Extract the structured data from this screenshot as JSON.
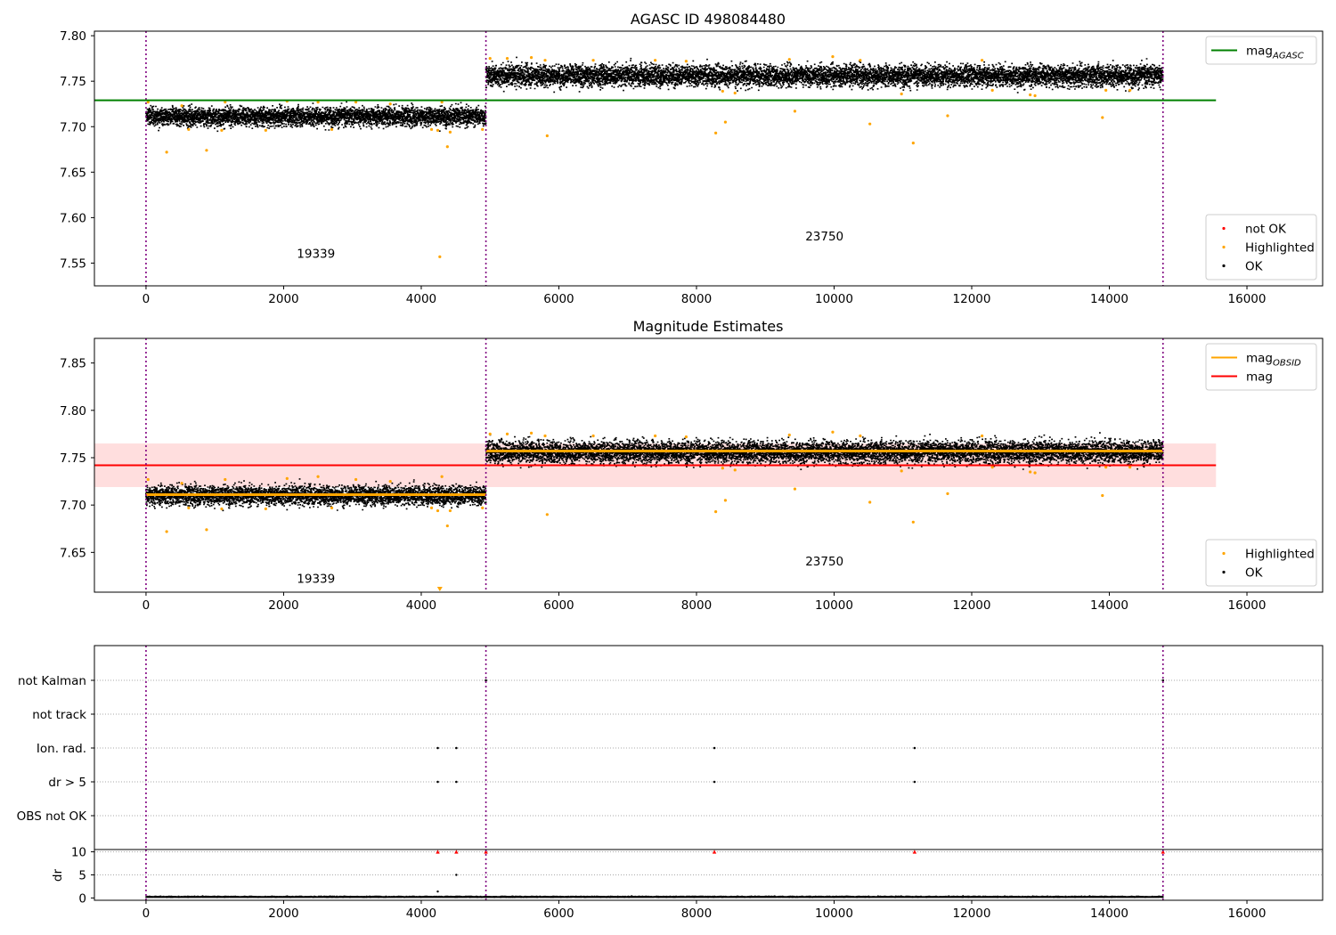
{
  "chart_data": [
    {
      "type": "scatter",
      "title": "AGASC ID 498084480",
      "xlabel": "",
      "ylabel": "",
      "xlim": [
        -750,
        17100
      ],
      "ylim": [
        7.525,
        7.805
      ],
      "x_ticks": [
        0,
        2000,
        4000,
        6000,
        8000,
        10000,
        12000,
        14000,
        16000
      ],
      "x_tick_labels": [
        "0",
        "2000",
        "4000",
        "6000",
        "8000",
        "10000",
        "12000",
        "14000",
        "16000"
      ],
      "y_ticks": [
        7.55,
        7.6,
        7.65,
        7.7,
        7.75,
        7.8
      ],
      "y_tick_labels": [
        "7.55",
        "7.60",
        "7.65",
        "7.70",
        "7.75",
        "7.80"
      ],
      "obs_boundaries": [
        0,
        4940,
        14780
      ],
      "annotations": [
        {
          "text": "19339",
          "x": 2470,
          "y": 7.556
        },
        {
          "text": "23750",
          "x": 9860,
          "y": 7.575
        }
      ],
      "horizontal_lines": [
        {
          "name": "mag_AGASC",
          "value": 7.729,
          "x_range": [
            -750,
            15550
          ],
          "color": "#008000"
        }
      ],
      "series": [
        {
          "name": "OK",
          "color": "#000000",
          "segments": [
            {
              "x_range": [
                0,
                4940
              ],
              "mean": 7.712,
              "spread": 0.013
            },
            {
              "x_range": [
                4940,
                14780
              ],
              "mean": 7.757,
              "spread": 0.015
            }
          ]
        },
        {
          "name": "Highlighted",
          "color": "#ffa500",
          "points": [
            [
              30,
              7.727
            ],
            [
              300,
              7.672
            ],
            [
              520,
              7.723
            ],
            [
              620,
              7.697
            ],
            [
              880,
              7.674
            ],
            [
              1100,
              7.696
            ],
            [
              1150,
              7.727
            ],
            [
              1740,
              7.696
            ],
            [
              2050,
              7.728
            ],
            [
              2500,
              7.727
            ],
            [
              2700,
              7.697
            ],
            [
              3050,
              7.727
            ],
            [
              3550,
              7.725
            ],
            [
              4150,
              7.697
            ],
            [
              4240,
              7.696
            ],
            [
              4270,
              7.557
            ],
            [
              4300,
              7.727
            ],
            [
              4380,
              7.678
            ],
            [
              4420,
              7.694
            ],
            [
              4890,
              7.697
            ],
            [
              5000,
              7.775
            ],
            [
              5250,
              7.775
            ],
            [
              5600,
              7.776
            ],
            [
              5800,
              7.773
            ],
            [
              5830,
              7.69
            ],
            [
              6500,
              7.773
            ],
            [
              7400,
              7.773
            ],
            [
              7850,
              7.772
            ],
            [
              8280,
              7.693
            ],
            [
              8380,
              7.739
            ],
            [
              8420,
              7.705
            ],
            [
              8560,
              7.737
            ],
            [
              9350,
              7.774
            ],
            [
              9430,
              7.717
            ],
            [
              9980,
              7.777
            ],
            [
              10380,
              7.773
            ],
            [
              10520,
              7.703
            ],
            [
              10980,
              7.736
            ],
            [
              11150,
              7.682
            ],
            [
              11650,
              7.712
            ],
            [
              12150,
              7.773
            ],
            [
              12300,
              7.74
            ],
            [
              12850,
              7.735
            ],
            [
              12920,
              7.734
            ],
            [
              13900,
              7.71
            ],
            [
              13950,
              7.74
            ],
            [
              14300,
              7.74
            ]
          ]
        },
        {
          "name": "not OK",
          "color": "#ff0000",
          "points": []
        }
      ],
      "legends": [
        {
          "placement": "top-right",
          "entries": [
            {
              "label": "mag",
              "subscript": "AGASC",
              "color": "#008000",
              "kind": "line"
            }
          ]
        },
        {
          "placement": "bottom-right",
          "entries": [
            {
              "label": "not OK",
              "color": "#ff0000",
              "kind": "marker"
            },
            {
              "label": "Highlighted",
              "color": "#ffa500",
              "kind": "marker"
            },
            {
              "label": "OK",
              "color": "#000000",
              "kind": "marker"
            }
          ]
        }
      ]
    },
    {
      "type": "scatter",
      "title": "Magnitude Estimates",
      "xlabel": "",
      "ylabel": "",
      "xlim": [
        -750,
        17100
      ],
      "ylim": [
        7.608,
        7.876
      ],
      "x_ticks": [
        0,
        2000,
        4000,
        6000,
        8000,
        10000,
        12000,
        14000,
        16000
      ],
      "x_tick_labels": [
        "0",
        "2000",
        "4000",
        "6000",
        "8000",
        "10000",
        "12000",
        "14000",
        "16000"
      ],
      "y_ticks": [
        7.65,
        7.7,
        7.75,
        7.8,
        7.85
      ],
      "y_tick_labels": [
        "7.65",
        "7.70",
        "7.75",
        "7.80",
        "7.85"
      ],
      "obs_boundaries": [
        0,
        4940,
        14780
      ],
      "annotations": [
        {
          "text": "19339",
          "x": 2470,
          "y": 7.618
        },
        {
          "text": "23750",
          "x": 9860,
          "y": 7.636
        }
      ],
      "mag_band": {
        "low": 7.719,
        "high": 7.765,
        "x_range": [
          -750,
          15550
        ],
        "color": "#ffdede"
      },
      "horizontal_lines": [
        {
          "name": "mag",
          "value": 7.742,
          "x_range": [
            -750,
            15550
          ],
          "color": "#ff0000"
        }
      ],
      "obsid_mags": [
        {
          "x_range": [
            0,
            4940
          ],
          "value": 7.711
        },
        {
          "x_range": [
            4940,
            14780
          ],
          "value": 7.757
        }
      ],
      "series": [
        {
          "name": "OK",
          "color": "#000000",
          "segments": [
            {
              "x_range": [
                0,
                4940
              ],
              "mean": 7.711,
              "spread": 0.013
            },
            {
              "x_range": [
                4940,
                14780
              ],
              "mean": 7.757,
              "spread": 0.015
            }
          ]
        },
        {
          "name": "Highlighted",
          "color": "#ffa500",
          "points": [
            [
              30,
              7.727
            ],
            [
              300,
              7.672
            ],
            [
              520,
              7.723
            ],
            [
              620,
              7.697
            ],
            [
              880,
              7.674
            ],
            [
              1100,
              7.696
            ],
            [
              1150,
              7.727
            ],
            [
              1740,
              7.696
            ],
            [
              2050,
              7.728
            ],
            [
              2500,
              7.73
            ],
            [
              2700,
              7.697
            ],
            [
              3050,
              7.727
            ],
            [
              3550,
              7.725
            ],
            [
              4150,
              7.697
            ],
            [
              4240,
              7.694
            ],
            [
              4300,
              7.73
            ],
            [
              4380,
              7.678
            ],
            [
              4420,
              7.694
            ],
            [
              4890,
              7.697
            ],
            [
              5000,
              7.775
            ],
            [
              5250,
              7.775
            ],
            [
              5600,
              7.776
            ],
            [
              5800,
              7.773
            ],
            [
              5830,
              7.69
            ],
            [
              6500,
              7.773
            ],
            [
              7400,
              7.773
            ],
            [
              7850,
              7.772
            ],
            [
              8280,
              7.693
            ],
            [
              8380,
              7.739
            ],
            [
              8420,
              7.705
            ],
            [
              8560,
              7.737
            ],
            [
              9350,
              7.774
            ],
            [
              9430,
              7.717
            ],
            [
              9980,
              7.777
            ],
            [
              10380,
              7.773
            ],
            [
              10520,
              7.703
            ],
            [
              10980,
              7.736
            ],
            [
              11150,
              7.682
            ],
            [
              11650,
              7.712
            ],
            [
              12150,
              7.773
            ],
            [
              12300,
              7.74
            ],
            [
              12850,
              7.735
            ],
            [
              12920,
              7.734
            ],
            [
              13900,
              7.71
            ],
            [
              13950,
              7.74
            ],
            [
              14300,
              7.74
            ]
          ]
        }
      ],
      "legends": [
        {
          "placement": "top-right",
          "entries": [
            {
              "label": "mag",
              "subscript": "OBSID",
              "color": "#ffa500",
              "kind": "line"
            },
            {
              "label": "mag",
              "color": "#ff0000",
              "kind": "line"
            }
          ]
        },
        {
          "placement": "bottom-right",
          "entries": [
            {
              "label": "Highlighted",
              "color": "#ffa500",
              "kind": "marker"
            },
            {
              "label": "OK",
              "color": "#000000",
              "kind": "marker"
            }
          ]
        }
      ]
    },
    {
      "type": "scatter",
      "title": "",
      "xlabel": "",
      "ylabel": "",
      "xlim": [
        -750,
        17100
      ],
      "categories": [
        "not Kalman",
        "not track",
        "Ion. rad.",
        "dr > 5",
        "OBS not OK"
      ],
      "obs_boundaries": [
        0,
        4940,
        14780
      ],
      "flags": {
        "not Kalman": [
          4940,
          14780
        ],
        "not track": [],
        "Ion. rad.": [
          4240,
          4510,
          8260,
          11170
        ],
        "dr > 5": [
          4240,
          4510,
          8260,
          11170
        ],
        "OBS not OK": []
      }
    },
    {
      "type": "scatter",
      "title": "",
      "xlabel": "",
      "ylabel": "dr",
      "xlim": [
        -750,
        17100
      ],
      "ylim": [
        -0.5,
        10.5
      ],
      "x_ticks": [
        0,
        2000,
        4000,
        6000,
        8000,
        10000,
        12000,
        14000,
        16000
      ],
      "x_tick_labels": [
        "0",
        "2000",
        "4000",
        "6000",
        "8000",
        "10000",
        "12000",
        "14000",
        "16000"
      ],
      "y_ticks": [
        0,
        5,
        10
      ],
      "y_tick_labels": [
        "0",
        "5",
        "10"
      ],
      "obs_boundaries": [
        0,
        4940,
        14780
      ],
      "series": [
        {
          "name": "dr",
          "color": "#000000",
          "baseline": 0.3,
          "range": [
            0,
            14780
          ]
        },
        {
          "name": "dr > 5 (clipped)",
          "color": "#ff0000",
          "points": [
            [
              4240,
              10
            ],
            [
              4510,
              10
            ],
            [
              8260,
              10
            ],
            [
              11170,
              10
            ],
            [
              4940,
              10
            ],
            [
              14780,
              10
            ]
          ]
        },
        {
          "name": "dr outliers",
          "color": "#000000",
          "points": [
            [
              4240,
              1.4
            ],
            [
              4510,
              5.0
            ]
          ]
        }
      ]
    }
  ]
}
